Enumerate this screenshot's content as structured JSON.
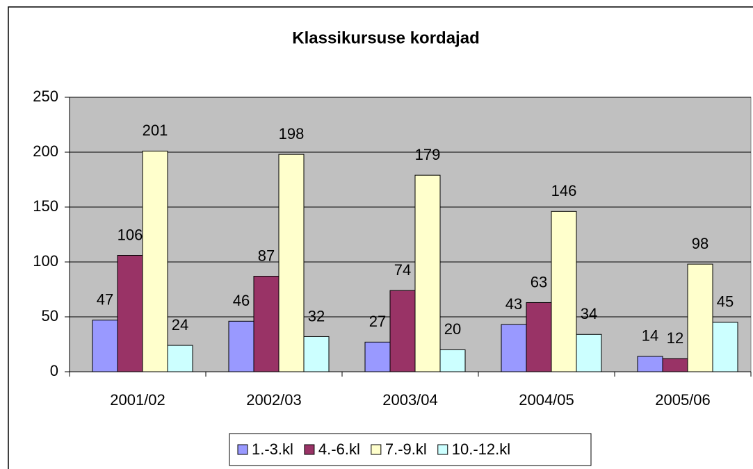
{
  "chart_data": {
    "type": "bar",
    "title": "Klassikursuse kordajad",
    "categories": [
      "2001/02",
      "2002/03",
      "2003/04",
      "2004/05",
      "2005/06"
    ],
    "series": [
      {
        "name": "1.-3.kl",
        "color": "#9999ff",
        "values": [
          47,
          46,
          27,
          43,
          14
        ]
      },
      {
        "name": "4.-6.kl",
        "color": "#993366",
        "values": [
          106,
          87,
          74,
          63,
          12
        ]
      },
      {
        "name": "7.-9.kl",
        "color": "#ffffcc",
        "values": [
          201,
          198,
          179,
          146,
          98
        ]
      },
      {
        "name": "10.-12.kl",
        "color": "#ccffff",
        "values": [
          24,
          32,
          20,
          34,
          45
        ]
      }
    ],
    "ylim": [
      0,
      250
    ],
    "yticks": [
      0,
      50,
      100,
      150,
      200,
      250
    ],
    "grid": true,
    "legend": "bottom"
  }
}
